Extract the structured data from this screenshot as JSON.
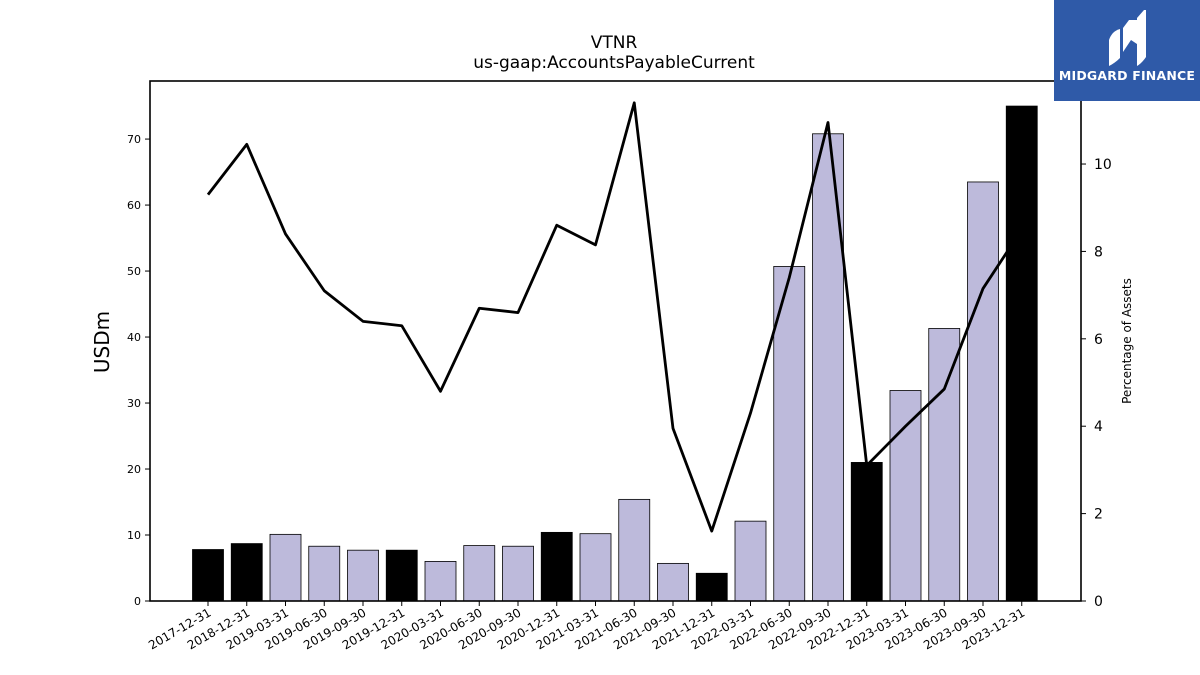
{
  "logo": {
    "text": "MIDGARD FINANCE",
    "background": "#2f5aa8"
  },
  "chart_data": {
    "type": "bar",
    "title": "VTNR",
    "subtitle": "us-gaap:AccountsPayableCurrent",
    "ylabel": "USDm",
    "y2label": "Percentage of Assets",
    "ylim": [
      0,
      78.8
    ],
    "y2lim": [
      0,
      11.9
    ],
    "yticks": [
      0,
      10,
      20,
      30,
      40,
      50,
      60,
      70
    ],
    "y2ticks": [
      0,
      2,
      4,
      6,
      8,
      10
    ],
    "categories": [
      "2017-12-31",
      "2018-12-31",
      "2019-03-31",
      "2019-06-30",
      "2019-09-30",
      "2019-12-31",
      "2020-03-31",
      "2020-06-30",
      "2020-09-30",
      "2020-12-31",
      "2021-03-31",
      "2021-06-30",
      "2021-09-30",
      "2021-12-31",
      "2022-03-31",
      "2022-06-30",
      "2022-09-30",
      "2022-12-31",
      "2023-03-31",
      "2023-06-30",
      "2023-09-30",
      "2023-12-31"
    ],
    "series": [
      {
        "type": "bar",
        "values": [
          7.8,
          8.7,
          10.1,
          8.3,
          7.7,
          7.7,
          6.0,
          8.4,
          8.3,
          10.4,
          10.2,
          15.4,
          5.7,
          4.2,
          12.1,
          50.7,
          70.8,
          21.0,
          31.9,
          41.3,
          63.5,
          75.0
        ],
        "annual": [
          true,
          true,
          false,
          false,
          false,
          true,
          false,
          false,
          false,
          true,
          false,
          false,
          false,
          true,
          false,
          false,
          false,
          true,
          false,
          false,
          false,
          true
        ]
      },
      {
        "type": "line",
        "axis": "right",
        "values": [
          9.3,
          10.45,
          8.4,
          7.1,
          6.4,
          6.3,
          4.8,
          6.7,
          6.6,
          8.6,
          8.15,
          11.4,
          3.95,
          1.6,
          4.3,
          7.4,
          10.95,
          3.1,
          4.0,
          4.85,
          7.15,
          8.5
        ]
      }
    ],
    "colors": {
      "annual_bar": "#000000",
      "quarter_bar": "#bdbadb",
      "line": "#000000"
    }
  }
}
